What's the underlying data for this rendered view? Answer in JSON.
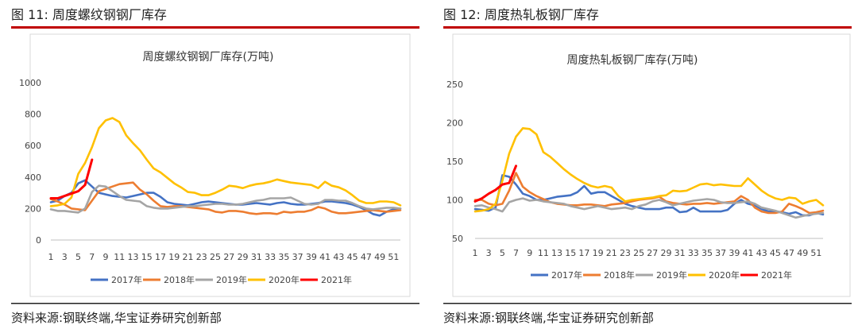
{
  "panels": [
    {
      "caption": "图 11:  周度螺纹钢钢厂库存",
      "source": "资料来源:钢联终端,华宝证券研究创新部"
    },
    {
      "caption": "图 12:  周度热轧板钢厂库存",
      "source": "资料来源:钢联终端,华宝证券研究创新部"
    }
  ],
  "chart_data": [
    {
      "type": "line",
      "title": "周度螺纹钢钢厂库存(万吨)",
      "xlabel": "",
      "ylabel": "",
      "ylim": [
        0,
        1000
      ],
      "yticks": [
        0,
        200,
        400,
        600,
        800,
        1000
      ],
      "xticks": [
        1,
        3,
        5,
        7,
        9,
        11,
        13,
        15,
        17,
        19,
        21,
        23,
        25,
        27,
        29,
        31,
        33,
        35,
        37,
        39,
        41,
        43,
        45,
        47,
        49,
        51
      ],
      "xlim": [
        1,
        52
      ],
      "grid": false,
      "legend": "bottom",
      "series": [
        {
          "name": "2017年",
          "color": "#4472C4",
          "x": [
            1,
            2,
            3,
            4,
            5,
            6,
            7,
            8,
            9,
            10,
            11,
            12,
            13,
            14,
            15,
            16,
            17,
            18,
            19,
            20,
            21,
            22,
            23,
            24,
            25,
            26,
            27,
            28,
            29,
            30,
            31,
            32,
            33,
            34,
            35,
            36,
            37,
            38,
            39,
            40,
            41,
            42,
            43,
            44,
            45,
            46,
            47,
            48,
            49,
            50,
            51,
            52
          ],
          "values": [
            240,
            250,
            280,
            300,
            360,
            380,
            340,
            300,
            290,
            280,
            275,
            270,
            280,
            290,
            300,
            300,
            275,
            240,
            230,
            225,
            220,
            230,
            240,
            245,
            240,
            235,
            230,
            225,
            225,
            230,
            235,
            230,
            225,
            235,
            240,
            230,
            225,
            225,
            230,
            235,
            245,
            245,
            240,
            235,
            225,
            210,
            190,
            165,
            155,
            180,
            195,
            200
          ]
        },
        {
          "name": "2018年",
          "color": "#ED7D31",
          "x": [
            1,
            2,
            3,
            4,
            5,
            6,
            7,
            8,
            9,
            10,
            11,
            12,
            13,
            14,
            15,
            16,
            17,
            18,
            19,
            20,
            21,
            22,
            23,
            24,
            25,
            26,
            27,
            28,
            29,
            30,
            31,
            32,
            33,
            34,
            35,
            36,
            37,
            38,
            39,
            40,
            41,
            42,
            43,
            44,
            45,
            46,
            47,
            48,
            49,
            50,
            51,
            52
          ],
          "values": [
            260,
            245,
            225,
            200,
            195,
            190,
            250,
            310,
            325,
            340,
            355,
            360,
            365,
            320,
            290,
            250,
            215,
            210,
            215,
            215,
            210,
            205,
            200,
            195,
            180,
            175,
            185,
            185,
            180,
            170,
            165,
            170,
            170,
            165,
            180,
            175,
            180,
            180,
            190,
            210,
            200,
            180,
            170,
            170,
            175,
            180,
            185,
            190,
            185,
            180,
            185,
            190
          ]
        },
        {
          "name": "2019年",
          "color": "#A5A5A5",
          "x": [
            1,
            2,
            3,
            4,
            5,
            6,
            7,
            8,
            9,
            10,
            11,
            12,
            13,
            14,
            15,
            16,
            17,
            18,
            19,
            20,
            21,
            22,
            23,
            24,
            25,
            26,
            27,
            28,
            29,
            30,
            31,
            32,
            33,
            34,
            35,
            36,
            37,
            38,
            39,
            40,
            41,
            42,
            43,
            44,
            45,
            46,
            47,
            48,
            49,
            50,
            51,
            52
          ],
          "values": [
            195,
            185,
            185,
            180,
            175,
            200,
            305,
            345,
            340,
            310,
            280,
            255,
            250,
            245,
            215,
            205,
            200,
            200,
            205,
            210,
            215,
            215,
            220,
            225,
            230,
            230,
            225,
            225,
            230,
            240,
            250,
            255,
            265,
            265,
            265,
            270,
            250,
            230,
            225,
            230,
            255,
            255,
            250,
            250,
            235,
            215,
            200,
            195,
            200,
            205,
            205,
            200
          ]
        },
        {
          "name": "2020年",
          "color": "#FFC000",
          "x": [
            1,
            2,
            3,
            4,
            5,
            6,
            7,
            8,
            9,
            10,
            11,
            12,
            13,
            14,
            15,
            16,
            17,
            18,
            19,
            20,
            21,
            22,
            23,
            24,
            25,
            26,
            27,
            28,
            29,
            30,
            31,
            32,
            33,
            34,
            35,
            36,
            37,
            38,
            39,
            40,
            41,
            42,
            43,
            44,
            45,
            46,
            47,
            48,
            49,
            50,
            51,
            52
          ],
          "values": [
            215,
            220,
            230,
            270,
            420,
            490,
            590,
            710,
            760,
            775,
            750,
            665,
            615,
            570,
            510,
            455,
            430,
            395,
            360,
            335,
            305,
            300,
            285,
            285,
            300,
            320,
            345,
            340,
            330,
            345,
            355,
            360,
            370,
            385,
            375,
            365,
            360,
            355,
            350,
            330,
            370,
            345,
            335,
            315,
            285,
            250,
            235,
            235,
            245,
            245,
            240,
            220
          ]
        },
        {
          "name": "2021年",
          "color": "#FF0000",
          "x": [
            1,
            2,
            3,
            4,
            5,
            6,
            7
          ],
          "values": [
            265,
            265,
            280,
            295,
            310,
            350,
            510
          ]
        }
      ]
    },
    {
      "type": "line",
      "title": "周度热轧板钢厂库存(万吨)",
      "xlabel": "",
      "ylabel": "",
      "ylim": [
        50,
        250
      ],
      "yticks": [
        50,
        100,
        150,
        200,
        250
      ],
      "xticks": [
        1,
        3,
        5,
        7,
        9,
        11,
        13,
        15,
        17,
        19,
        21,
        23,
        25,
        27,
        29,
        31,
        33,
        35,
        37,
        39,
        41,
        43,
        45,
        47,
        49,
        51
      ],
      "xlim": [
        1,
        52
      ],
      "grid": false,
      "legend": "bottom",
      "series": [
        {
          "name": "2017年",
          "color": "#4472C4",
          "x": [
            1,
            2,
            3,
            4,
            5,
            6,
            7,
            8,
            9,
            10,
            11,
            12,
            13,
            14,
            15,
            16,
            17,
            18,
            19,
            20,
            21,
            22,
            23,
            24,
            25,
            26,
            27,
            28,
            29,
            30,
            31,
            32,
            33,
            34,
            35,
            36,
            37,
            38,
            39,
            40,
            41,
            42,
            43,
            44,
            45,
            46,
            47,
            48,
            49,
            50,
            51,
            52
          ],
          "values": [
            88,
            87,
            86,
            90,
            132,
            130,
            120,
            108,
            105,
            100,
            100,
            102,
            104,
            105,
            106,
            110,
            118,
            108,
            110,
            110,
            105,
            100,
            95,
            92,
            90,
            88,
            88,
            88,
            90,
            90,
            84,
            85,
            90,
            85,
            85,
            85,
            85,
            87,
            95,
            100,
            95,
            93,
            88,
            85,
            85,
            84,
            82,
            84,
            80,
            80,
            83,
            81
          ]
        },
        {
          "name": "2018年",
          "color": "#ED7D31",
          "x": [
            1,
            2,
            3,
            4,
            5,
            6,
            7,
            8,
            9,
            10,
            11,
            12,
            13,
            14,
            15,
            16,
            17,
            18,
            19,
            20,
            21,
            22,
            23,
            24,
            25,
            26,
            27,
            28,
            29,
            30,
            31,
            32,
            33,
            34,
            35,
            36,
            37,
            38,
            39,
            40,
            41,
            42,
            43,
            44,
            45,
            46,
            47,
            48,
            49,
            50,
            51,
            52
          ],
          "values": [
            100,
            100,
            95,
            93,
            95,
            112,
            135,
            117,
            110,
            105,
            101,
            97,
            95,
            94,
            93,
            93,
            94,
            94,
            93,
            92,
            94,
            95,
            96,
            98,
            100,
            101,
            102,
            104,
            98,
            96,
            95,
            94,
            95,
            95,
            96,
            95,
            96,
            97,
            98,
            105,
            100,
            90,
            85,
            83,
            83,
            85,
            95,
            92,
            88,
            83,
            84,
            86
          ]
        },
        {
          "name": "2019年",
          "color": "#A5A5A5",
          "x": [
            1,
            2,
            3,
            4,
            5,
            6,
            7,
            8,
            9,
            10,
            11,
            12,
            13,
            14,
            15,
            16,
            17,
            18,
            19,
            20,
            21,
            22,
            23,
            24,
            25,
            26,
            27,
            28,
            29,
            30,
            31,
            32,
            33,
            34,
            35,
            36,
            37,
            38,
            39,
            40,
            41,
            42,
            43,
            44,
            45,
            46,
            47,
            48,
            49,
            50,
            51,
            52
          ],
          "values": [
            92,
            93,
            90,
            88,
            85,
            97,
            100,
            102,
            99,
            100,
            98,
            97,
            96,
            95,
            92,
            90,
            88,
            90,
            92,
            90,
            88,
            89,
            90,
            88,
            92,
            94,
            98,
            100,
            97,
            93,
            95,
            97,
            99,
            100,
            101,
            100,
            97,
            96,
            96,
            97,
            98,
            95,
            90,
            88,
            86,
            83,
            80,
            77,
            79,
            81,
            82,
            83
          ]
        },
        {
          "name": "2020年",
          "color": "#FFC000",
          "x": [
            1,
            2,
            3,
            4,
            5,
            6,
            7,
            8,
            9,
            10,
            11,
            12,
            13,
            14,
            15,
            16,
            17,
            18,
            19,
            20,
            21,
            22,
            23,
            24,
            25,
            26,
            27,
            28,
            29,
            30,
            31,
            32,
            33,
            34,
            35,
            36,
            37,
            38,
            39,
            40,
            41,
            42,
            43,
            44,
            45,
            46,
            47,
            48,
            49,
            50,
            51,
            52
          ],
          "values": [
            85,
            86,
            88,
            95,
            125,
            160,
            182,
            193,
            192,
            185,
            162,
            156,
            148,
            140,
            133,
            127,
            122,
            118,
            116,
            118,
            116,
            105,
            98,
            100,
            101,
            102,
            103,
            105,
            106,
            112,
            111,
            112,
            116,
            120,
            121,
            119,
            120,
            119,
            118,
            118,
            128,
            120,
            112,
            106,
            102,
            100,
            103,
            102,
            95,
            98,
            100,
            93
          ]
        },
        {
          "name": "2021年",
          "color": "#FF0000",
          "x": [
            1,
            2,
            3,
            4,
            5,
            6,
            7
          ],
          "values": [
            98,
            102,
            108,
            113,
            120,
            122,
            144
          ]
        }
      ]
    }
  ]
}
